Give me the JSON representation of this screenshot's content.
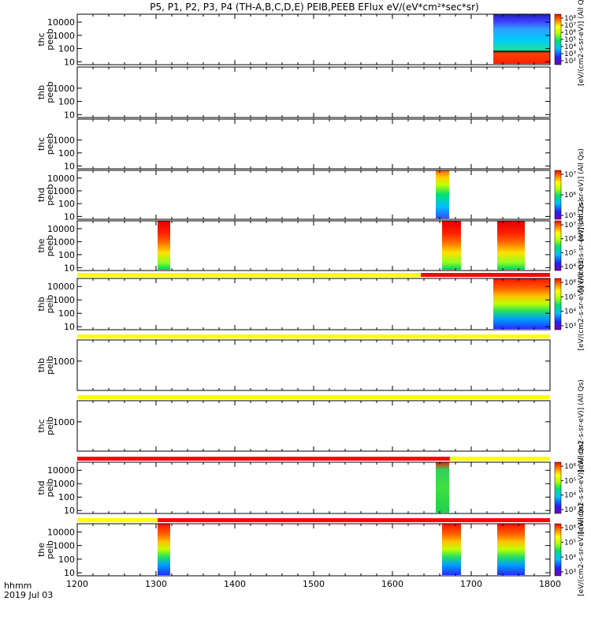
{
  "title": "P5, P1, P2, P3, P4 (TH-A,B,C,D,E) PEIB,PEEB EFlux eV/(eV*cm²*sec*sr)",
  "footer": {
    "line1": "hhmm",
    "line2": "2019 Jul 03"
  },
  "colors": {
    "flag_yellow": "#ffff00",
    "flag_red": "#ff0000",
    "axis": "#000000"
  },
  "chart_data": {
    "type": "heatmap",
    "x_range": [
      1200,
      1800
    ],
    "x_ticks": [
      1200,
      1300,
      1400,
      1500,
      1600,
      1700,
      1800
    ],
    "y_scale": "log",
    "ylim": [
      6,
      40000
    ],
    "panels": [
      {
        "ylabel": [
          "thc",
          "peeb"
        ],
        "y_ticks": [
          "10",
          "100",
          "1000",
          "10000"
        ],
        "colorbar": {
          "ticks": [
            "10⁸",
            "10⁷",
            "10⁶",
            "10⁵",
            "10⁴",
            "10³",
            "10²"
          ],
          "label": "[eV/(cm2-s-sr-eV)] (All Qs)"
        },
        "blocks": [
          {
            "x0": 1728,
            "x1": 1800,
            "profile": "mixed"
          }
        ]
      },
      {
        "ylabel": [
          "thb",
          "peeb"
        ],
        "y_ticks": [
          "10",
          "100",
          "1000"
        ],
        "blocks": []
      },
      {
        "ylabel": [
          "thc",
          "peeb"
        ],
        "y_ticks": [
          "10",
          "100",
          "1000"
        ],
        "blocks": []
      },
      {
        "ylabel": [
          "thd",
          "peeb"
        ],
        "y_ticks": [
          "10",
          "100",
          "1000",
          "10000"
        ],
        "colorbar": {
          "ticks": [
            "10⁷",
            "10⁶",
            "10⁵"
          ],
          "label": "[eV/(cm2-s-sr-eV)] (All Qs)"
        },
        "blocks": [
          {
            "x0": 1655,
            "x1": 1672,
            "profile": "cool"
          }
        ]
      },
      {
        "ylabel": [
          "the",
          "peeb"
        ],
        "y_ticks": [
          "10",
          "100",
          "1000",
          "10000"
        ],
        "colorbar": {
          "ticks": [
            "10⁷",
            "10⁶",
            "10⁵",
            "10⁴"
          ],
          "label": "[eV/(cm2-s-sr-eV)] (All Qs)"
        },
        "blocks": [
          {
            "x0": 1302,
            "x1": 1318,
            "profile": "warm"
          },
          {
            "x0": 1663,
            "x1": 1687,
            "profile": "warm"
          },
          {
            "x0": 1733,
            "x1": 1768,
            "profile": "warm"
          }
        ]
      },
      {
        "ylabel": [
          "thb",
          "peib"
        ],
        "y_ticks": [
          "10",
          "100",
          "1000",
          "10000"
        ],
        "flag": [
          {
            "x0": 1200,
            "x1": 1636,
            "color": "yellow"
          },
          {
            "x0": 1636,
            "x1": 1800,
            "color": "red"
          }
        ],
        "colorbar": {
          "ticks": [
            "10⁶",
            "10⁵",
            "10⁴",
            "10³"
          ],
          "label": "[eV/(cm2-s-sr-eV)] (All Qs)"
        },
        "blocks": [
          {
            "x0": 1728,
            "x1": 1800,
            "profile": "ion"
          }
        ]
      },
      {
        "ylabel": [
          "thb",
          "peib"
        ],
        "y_ticks": [
          "1000"
        ],
        "flag": [
          {
            "x0": 1200,
            "x1": 1800,
            "color": "yellow"
          }
        ],
        "blocks": []
      },
      {
        "ylabel": [
          "thc",
          "peib"
        ],
        "y_ticks": [
          "1000"
        ],
        "flag": [
          {
            "x0": 1200,
            "x1": 1800,
            "color": "yellow"
          }
        ],
        "colorbar": {
          "label": "[eV/(cm2-s-sr-eV)] (All Qs)"
        },
        "blocks": []
      },
      {
        "ylabel": [
          "thd",
          "peib"
        ],
        "y_ticks": [
          "10",
          "100",
          "1000",
          "10000"
        ],
        "flag": [
          {
            "x0": 1200,
            "x1": 1673,
            "color": "red"
          },
          {
            "x0": 1673,
            "x1": 1800,
            "color": "yellow"
          }
        ],
        "colorbar": {
          "ticks": [
            "10⁶",
            "10⁵",
            "10⁴",
            "10³"
          ],
          "label": "[eV/(cm2-s-sr-eV)] (All Qs)"
        },
        "blocks": [
          {
            "x0": 1655,
            "x1": 1672,
            "profile": "green"
          }
        ]
      },
      {
        "ylabel": [
          "the",
          "peib"
        ],
        "y_ticks": [
          "10",
          "100",
          "1000",
          "10000"
        ],
        "flag": [
          {
            "x0": 1200,
            "x1": 1302,
            "color": "yellow"
          },
          {
            "x0": 1302,
            "x1": 1800,
            "color": "red"
          }
        ],
        "colorbar": {
          "ticks": [
            "10⁶",
            "10⁵",
            "10⁴",
            "10³"
          ],
          "label": "[eV/(cm2-s-sr-eV)] (All Qs)"
        },
        "blocks": [
          {
            "x0": 1302,
            "x1": 1318,
            "profile": "ion"
          },
          {
            "x0": 1663,
            "x1": 1687,
            "profile": "ion"
          },
          {
            "x0": 1733,
            "x1": 1768,
            "profile": "ion"
          }
        ]
      }
    ]
  }
}
